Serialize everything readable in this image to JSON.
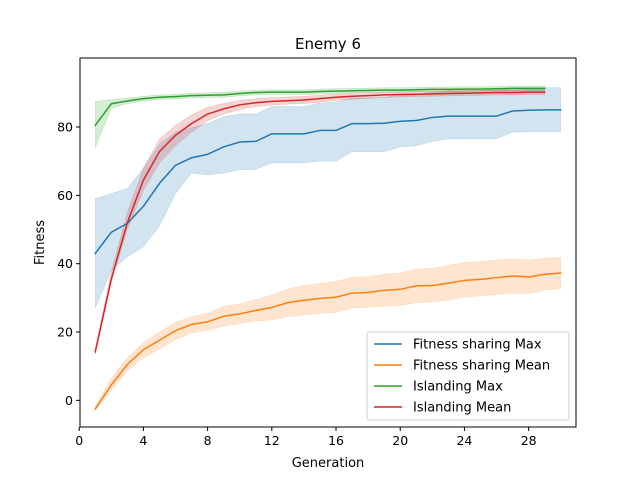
{
  "chart_data": {
    "type": "line",
    "title": "Enemy 6",
    "xlabel": "Generation",
    "ylabel": "Fitness",
    "xlim": [
      0.05,
      30.95
    ],
    "ylim": [
      -7.8,
      100.2
    ],
    "xticks": [
      0,
      4,
      8,
      12,
      16,
      20,
      24,
      28
    ],
    "yticks": [
      0,
      20,
      40,
      60,
      80
    ],
    "grid": false,
    "legend_position": "lower-right",
    "series": [
      {
        "name": " Fitness sharing Max",
        "color": "#1f77b4",
        "x": [
          1,
          2,
          3,
          4,
          5,
          6,
          7,
          8,
          9,
          10,
          11,
          12,
          13,
          14,
          15,
          16,
          17,
          18,
          19,
          20,
          21,
          22,
          23,
          24,
          25,
          26,
          27,
          28,
          29,
          30
        ],
        "values": [
          43.0,
          49.2,
          51.8,
          56.8,
          63.5,
          68.8,
          71.0,
          72.0,
          74.2,
          75.6,
          75.8,
          78.0,
          78.0,
          78.0,
          79.0,
          79.0,
          81.0,
          81.0,
          81.1,
          81.7,
          81.9,
          82.8,
          83.2,
          83.2,
          83.2,
          83.2,
          84.7,
          84.9,
          85.0,
          85.0
        ],
        "lower": [
          27.0,
          38.0,
          42.0,
          45.0,
          51.0,
          60.5,
          66.5,
          66.0,
          66.5,
          67.5,
          67.6,
          69.5,
          69.5,
          69.5,
          70.0,
          70.0,
          72.8,
          72.8,
          72.8,
          74.2,
          74.5,
          75.8,
          76.5,
          76.6,
          76.6,
          76.6,
          78.5,
          78.6,
          78.6,
          78.6
        ],
        "upper": [
          59.0,
          60.5,
          62.0,
          68.0,
          75.0,
          78.5,
          79.8,
          81.0,
          83.0,
          83.8,
          83.8,
          86.0,
          86.0,
          86.0,
          87.0,
          87.3,
          88.5,
          88.5,
          88.6,
          89.5,
          89.6,
          90.2,
          90.6,
          90.6,
          90.6,
          90.6,
          91.5,
          91.5,
          91.5,
          91.5
        ],
        "shaded_band": true
      },
      {
        "name": " Fitness sharing Mean",
        "color": "#ff7f0e",
        "x": [
          1,
          2,
          3,
          4,
          5,
          6,
          7,
          8,
          9,
          10,
          11,
          12,
          13,
          14,
          15,
          16,
          17,
          18,
          19,
          20,
          21,
          22,
          23,
          24,
          25,
          26,
          27,
          28,
          29,
          30
        ],
        "values": [
          -2.5,
          4.5,
          10.5,
          14.8,
          17.6,
          20.4,
          22.2,
          23.0,
          24.6,
          25.3,
          26.3,
          27.2,
          28.6,
          29.3,
          29.8,
          30.2,
          31.4,
          31.6,
          32.2,
          32.5,
          33.5,
          33.6,
          34.3,
          35.1,
          35.4,
          35.9,
          36.4,
          36.1,
          36.9,
          37.3
        ],
        "lower": [
          -3.0,
          3.0,
          8.5,
          12.5,
          15.0,
          17.8,
          19.8,
          20.5,
          21.8,
          22.5,
          23.2,
          23.6,
          24.5,
          25.0,
          25.5,
          25.8,
          27.0,
          27.2,
          27.6,
          27.8,
          28.6,
          28.8,
          29.4,
          30.2,
          30.6,
          31.0,
          31.4,
          31.3,
          32.2,
          32.8
        ],
        "upper": [
          -1.8,
          6.5,
          12.5,
          17.0,
          20.0,
          22.8,
          24.5,
          25.5,
          27.5,
          28.2,
          29.5,
          30.8,
          32.6,
          33.6,
          34.2,
          34.8,
          36.0,
          36.2,
          36.9,
          37.3,
          38.4,
          38.6,
          39.5,
          40.3,
          40.6,
          41.0,
          41.4,
          41.0,
          41.6,
          41.8
        ],
        "shaded_band": true
      },
      {
        "name": " Islanding Max",
        "color": "#2ca02c",
        "x": [
          1,
          2,
          3,
          4,
          5,
          6,
          7,
          8,
          9,
          10,
          11,
          12,
          13,
          14,
          15,
          16,
          17,
          18,
          19,
          20,
          21,
          22,
          23,
          24,
          25,
          26,
          27,
          28,
          29
        ],
        "values": [
          80.5,
          86.8,
          87.6,
          88.3,
          88.7,
          88.9,
          89.2,
          89.3,
          89.4,
          89.8,
          90.1,
          90.2,
          90.2,
          90.2,
          90.4,
          90.5,
          90.6,
          90.7,
          90.8,
          90.8,
          90.9,
          91.0,
          91.0,
          91.1,
          91.1,
          91.2,
          91.3,
          91.3,
          91.3
        ],
        "lower": [
          74.0,
          85.5,
          86.8,
          87.6,
          88.0,
          88.2,
          88.5,
          88.6,
          88.7,
          89.1,
          89.4,
          89.5,
          89.5,
          89.5,
          89.7,
          89.8,
          90.0,
          90.1,
          90.2,
          90.2,
          90.3,
          90.4,
          90.4,
          90.5,
          90.5,
          90.6,
          90.7,
          90.7,
          90.7
        ],
        "upper": [
          87.5,
          88.0,
          88.5,
          89.0,
          89.4,
          89.6,
          89.9,
          90.0,
          90.2,
          90.5,
          90.8,
          90.9,
          90.9,
          90.9,
          91.1,
          91.2,
          91.3,
          91.4,
          91.5,
          91.5,
          91.6,
          91.7,
          91.7,
          91.8,
          91.8,
          91.9,
          92.0,
          92.0,
          92.0
        ],
        "shaded_band": true
      },
      {
        "name": " Islanding Mean",
        "color": "#d62728",
        "x": [
          1,
          2,
          3,
          4,
          5,
          6,
          7,
          8,
          9,
          10,
          11,
          12,
          13,
          14,
          15,
          16,
          17,
          18,
          19,
          20,
          21,
          22,
          23,
          24,
          25,
          26,
          27,
          28,
          29
        ],
        "values": [
          14.2,
          35.5,
          52.0,
          64.5,
          72.8,
          77.6,
          81.0,
          83.8,
          85.3,
          86.5,
          87.1,
          87.5,
          87.7,
          87.9,
          88.3,
          88.7,
          89.0,
          89.2,
          89.4,
          89.5,
          89.6,
          89.7,
          89.8,
          89.9,
          90.0,
          90.1,
          90.1,
          90.2,
          90.2
        ],
        "lower": [
          13.5,
          34.5,
          50.0,
          61.5,
          69.5,
          74.5,
          78.5,
          81.8,
          83.8,
          85.2,
          86.0,
          86.4,
          86.7,
          86.9,
          87.3,
          87.8,
          88.1,
          88.4,
          88.6,
          88.8,
          88.9,
          89.0,
          89.1,
          89.2,
          89.3,
          89.4,
          89.4,
          89.5,
          89.5
        ],
        "upper": [
          15.0,
          37.5,
          55.0,
          68.0,
          76.5,
          80.5,
          83.5,
          85.8,
          86.9,
          87.8,
          88.3,
          88.6,
          88.8,
          89.0,
          89.3,
          89.6,
          89.9,
          90.0,
          90.2,
          90.3,
          90.4,
          90.4,
          90.5,
          90.6,
          90.7,
          90.8,
          90.8,
          90.9,
          90.9
        ],
        "shaded_band": true
      }
    ]
  }
}
